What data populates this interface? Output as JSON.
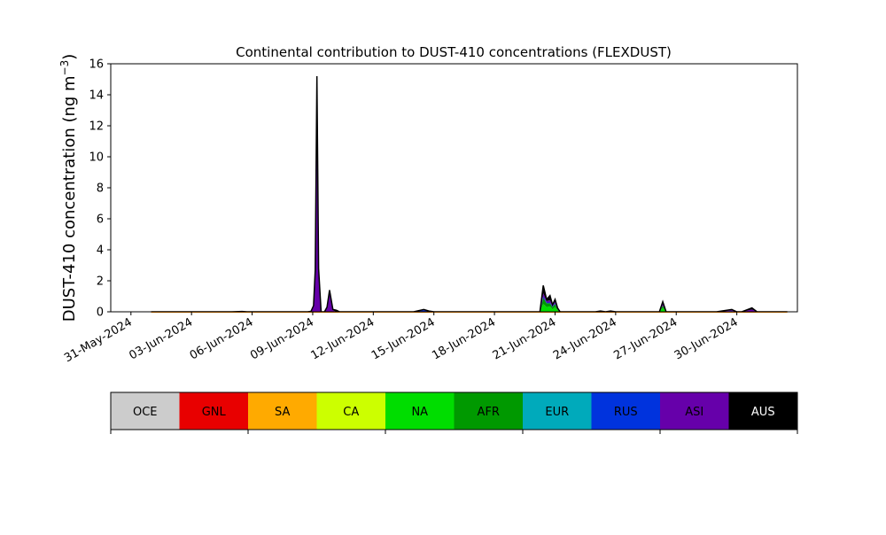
{
  "chart_data": {
    "type": "area",
    "title": "Continental contribution to DUST-410 concentrations (FLEXDUST)",
    "ylabel_main": "DUST-410 concentration (ng m",
    "ylabel_sup": "−3",
    "ylabel_close": ")",
    "xlabel": "",
    "ylim": [
      0,
      16
    ],
    "yticks": [
      0,
      2,
      4,
      6,
      8,
      10,
      12,
      14,
      16
    ],
    "x_range": [
      "2024-05-30",
      "2024-07-03"
    ],
    "xtick_dates": [
      "2024-05-31",
      "2024-06-03",
      "2024-06-06",
      "2024-06-09",
      "2024-06-12",
      "2024-06-15",
      "2024-06-18",
      "2024-06-21",
      "2024-06-24",
      "2024-06-27",
      "2024-06-30"
    ],
    "xtick_labels": [
      "31-May-2024",
      "03-Jun-2024",
      "06-Jun-2024",
      "09-Jun-2024",
      "12-Jun-2024",
      "15-Jun-2024",
      "18-Jun-2024",
      "21-Jun-2024",
      "24-Jun-2024",
      "27-Jun-2024",
      "30-Jun-2024"
    ],
    "grid": false,
    "x": [
      "2024-06-01",
      "2024-06-02",
      "2024-06-03",
      "2024-06-04",
      "2024-06-05",
      "2024-06-05 12:00",
      "2024-06-05 18:00",
      "2024-06-06",
      "2024-06-06 06:00",
      "2024-06-07",
      "2024-06-08",
      "2024-06-08 18:00",
      "2024-06-08 22:00",
      "2024-06-09 01:00",
      "2024-06-09 03:00",
      "2024-06-09 05:00",
      "2024-06-09 07:00",
      "2024-06-09 10:00",
      "2024-06-09 12:00",
      "2024-06-09 14:00",
      "2024-06-09 17:00",
      "2024-06-09 20:00",
      "2024-06-10",
      "2024-06-10 04:00",
      "2024-06-10 08:00",
      "2024-06-11",
      "2024-06-12",
      "2024-06-13",
      "2024-06-14",
      "2024-06-14 12:00",
      "2024-06-14 18:00",
      "2024-06-15",
      "2024-06-15 06:00",
      "2024-06-16",
      "2024-06-17",
      "2024-06-18",
      "2024-06-19",
      "2024-06-20",
      "2024-06-20 06:00",
      "2024-06-20 10:00",
      "2024-06-20 14:00",
      "2024-06-20 18:00",
      "2024-06-20 21:00",
      "2024-06-21",
      "2024-06-21 03:00",
      "2024-06-21 06:00",
      "2024-06-21 10:00",
      "2024-06-21 14:00",
      "2024-06-22",
      "2024-06-23",
      "2024-06-23 06:00",
      "2024-06-23 12:00",
      "2024-06-23 18:00",
      "2024-06-24",
      "2024-06-24 06:00",
      "2024-06-24 12:00",
      "2024-06-25",
      "2024-06-26",
      "2024-06-26 04:00",
      "2024-06-26 08:00",
      "2024-06-26 12:00",
      "2024-06-26 16:00",
      "2024-06-27",
      "2024-06-28",
      "2024-06-29",
      "2024-06-29 18:00",
      "2024-06-30",
      "2024-06-30 06:00",
      "2024-06-30 18:00",
      "2024-07-01",
      "2024-07-01 06:00",
      "2024-07-01 18:00",
      "2024-07-02",
      "2024-07-02 12:00"
    ],
    "series": [
      {
        "name": "OCE",
        "color": "#cccccc",
        "values": [
          0,
          0,
          0,
          0,
          0,
          0,
          0,
          0,
          0,
          0,
          0,
          0,
          0,
          0,
          0,
          0,
          0,
          0,
          0,
          0,
          0,
          0,
          0,
          0,
          0,
          0,
          0,
          0,
          0,
          0,
          0,
          0,
          0,
          0,
          0,
          0,
          0,
          0,
          0,
          0,
          0,
          0,
          0,
          0,
          0,
          0,
          0,
          0,
          0,
          0,
          0,
          0,
          0,
          0,
          0,
          0,
          0,
          0,
          0,
          0,
          0,
          0,
          0,
          0,
          0,
          0,
          0,
          0,
          0,
          0,
          0,
          0,
          0,
          0
        ]
      },
      {
        "name": "GNL",
        "color": "#e80000",
        "values": [
          0,
          0,
          0,
          0,
          0,
          0,
          0,
          0,
          0,
          0,
          0,
          0,
          0,
          0,
          0,
          0,
          0,
          0,
          0,
          0,
          0,
          0,
          0,
          0,
          0,
          0,
          0,
          0,
          0,
          0,
          0,
          0,
          0,
          0,
          0,
          0,
          0,
          0,
          0,
          0,
          0,
          0,
          0,
          0,
          0,
          0,
          0,
          0,
          0,
          0,
          0,
          0,
          0,
          0,
          0,
          0,
          0,
          0,
          0,
          0,
          0,
          0,
          0,
          0,
          0,
          0,
          0,
          0,
          0,
          0,
          0,
          0,
          0,
          0
        ]
      },
      {
        "name": "SA",
        "color": "#ffaa00",
        "values": [
          0,
          0,
          0,
          0,
          0,
          0,
          0,
          0,
          0,
          0,
          0,
          0,
          0,
          0,
          0,
          0,
          0,
          0,
          0,
          0,
          0,
          0,
          0,
          0,
          0,
          0,
          0,
          0,
          0,
          0,
          0,
          0,
          0,
          0,
          0,
          0,
          0,
          0,
          0,
          0,
          0,
          0,
          0,
          0,
          0,
          0,
          0,
          0,
          0,
          0,
          0,
          0,
          0,
          0,
          0,
          0,
          0,
          0,
          0,
          0,
          0,
          0,
          0,
          0,
          0,
          0,
          0,
          0,
          0,
          0,
          0,
          0,
          0,
          0
        ]
      },
      {
        "name": "CA",
        "color": "#ccff00",
        "values": [
          0,
          0,
          0,
          0,
          0,
          0,
          0,
          0,
          0,
          0,
          0,
          0,
          0,
          0,
          0,
          0,
          0,
          0,
          0,
          0,
          0,
          0,
          0,
          0,
          0,
          0,
          0,
          0,
          0,
          0,
          0,
          0,
          0,
          0,
          0,
          0,
          0,
          0,
          0,
          0,
          0,
          0,
          0,
          0,
          0,
          0,
          0,
          0,
          0,
          0,
          0,
          0,
          0,
          0,
          0,
          0,
          0,
          0,
          0,
          0,
          0,
          0,
          0,
          0,
          0,
          0,
          0,
          0,
          0,
          0,
          0,
          0,
          0,
          0
        ]
      },
      {
        "name": "NA",
        "color": "#00dd00",
        "values": [
          0,
          0,
          0,
          0,
          0,
          0,
          0,
          0,
          0,
          0,
          0,
          0,
          0,
          0,
          0,
          0,
          0,
          0,
          0,
          0,
          0,
          0,
          0,
          0,
          0,
          0,
          0,
          0,
          0,
          0,
          0,
          0,
          0,
          0,
          0,
          0,
          0,
          0,
          0,
          0.5,
          0.3,
          0.35,
          0.15,
          0.3,
          0.1,
          0,
          0,
          0,
          0,
          0,
          0,
          0,
          0,
          0,
          0,
          0,
          0,
          0,
          0,
          0.25,
          0,
          0,
          0,
          0,
          0,
          0,
          0,
          0,
          0,
          0,
          0,
          0,
          0,
          0
        ]
      },
      {
        "name": "AFR",
        "color": "#009900",
        "values": [
          0,
          0,
          0,
          0,
          0,
          0,
          0,
          0,
          0,
          0,
          0,
          0,
          0,
          0,
          0,
          0,
          0,
          0,
          0,
          0,
          0,
          0,
          0,
          0,
          0,
          0,
          0,
          0,
          0,
          0,
          0,
          0,
          0,
          0,
          0,
          0,
          0,
          0,
          0,
          0.4,
          0.25,
          0.2,
          0.15,
          0.2,
          0.05,
          0,
          0,
          0,
          0,
          0,
          0,
          0,
          0,
          0,
          0,
          0,
          0,
          0,
          0,
          0.15,
          0,
          0,
          0,
          0,
          0,
          0,
          0,
          0,
          0,
          0,
          0,
          0,
          0,
          0
        ]
      },
      {
        "name": "EUR",
        "color": "#00aabb",
        "values": [
          0,
          0,
          0,
          0,
          0,
          0,
          0,
          0,
          0,
          0,
          0,
          0,
          0,
          0,
          0,
          0,
          0,
          0,
          0,
          0,
          0,
          0,
          0,
          0,
          0,
          0,
          0,
          0,
          0,
          0,
          0,
          0,
          0,
          0,
          0,
          0,
          0,
          0,
          0,
          0,
          0,
          0,
          0,
          0,
          0,
          0,
          0,
          0,
          0,
          0,
          0,
          0,
          0,
          0,
          0,
          0,
          0,
          0,
          0,
          0,
          0,
          0,
          0,
          0,
          0,
          0,
          0,
          0,
          0,
          0,
          0,
          0,
          0,
          0
        ]
      },
      {
        "name": "RUS",
        "color": "#0033dd",
        "values": [
          0,
          0,
          0,
          0,
          0,
          0,
          0,
          0,
          0,
          0,
          0,
          0,
          0,
          0,
          0,
          0,
          0,
          0,
          0,
          0,
          0,
          0,
          0,
          0,
          0,
          0,
          0,
          0,
          0,
          0.1,
          0.05,
          0,
          0,
          0,
          0,
          0,
          0,
          0,
          0,
          0.1,
          0.05,
          0.05,
          0.05,
          0.05,
          0,
          0,
          0,
          0,
          0,
          0,
          0.05,
          0,
          0.05,
          0,
          0,
          0,
          0,
          0,
          0,
          0,
          0,
          0,
          0,
          0,
          0,
          0.05,
          0,
          0,
          0,
          0,
          0,
          0,
          0,
          0
        ]
      },
      {
        "name": "ASI",
        "color": "#6600aa",
        "values": [
          0,
          0,
          0,
          0,
          0,
          0.02,
          0,
          0,
          0,
          0,
          0,
          0,
          0.03,
          0.4,
          2.5,
          10.5,
          2.5,
          0,
          0,
          0,
          0.3,
          1.2,
          0.1,
          0,
          0,
          0,
          0,
          0,
          0,
          0.05,
          0,
          0,
          0,
          0,
          0,
          0,
          0,
          0,
          0,
          0.2,
          0.1,
          0.15,
          0.05,
          0.1,
          0.05,
          0,
          0,
          0,
          0,
          0,
          0,
          0,
          0,
          0,
          0,
          0,
          0,
          0,
          0,
          0.15,
          0,
          0,
          0,
          0,
          0,
          0.05,
          0,
          0,
          0.15,
          0,
          0,
          0,
          0,
          0
        ]
      },
      {
        "name": "AUS",
        "color": "#000000",
        "values": [
          0,
          0,
          0,
          0,
          0,
          0,
          0,
          0,
          0,
          0,
          0,
          0,
          0,
          0,
          0.2,
          4.7,
          0.3,
          0,
          0,
          0,
          0,
          0.2,
          0.05,
          0.1,
          0,
          0,
          0,
          0,
          0,
          0,
          0,
          0,
          0,
          0,
          0,
          0,
          0,
          0,
          0,
          0.5,
          0.1,
          0.3,
          0.05,
          0.15,
          0.05,
          0,
          0,
          0,
          0,
          0,
          0,
          0,
          0,
          0,
          0,
          0,
          0,
          0,
          0,
          0.1,
          0,
          0,
          0,
          0,
          0,
          0.05,
          0,
          0,
          0.1,
          0,
          0,
          0,
          0,
          0
        ]
      }
    ],
    "legend_placement": "bottom colorbar"
  }
}
